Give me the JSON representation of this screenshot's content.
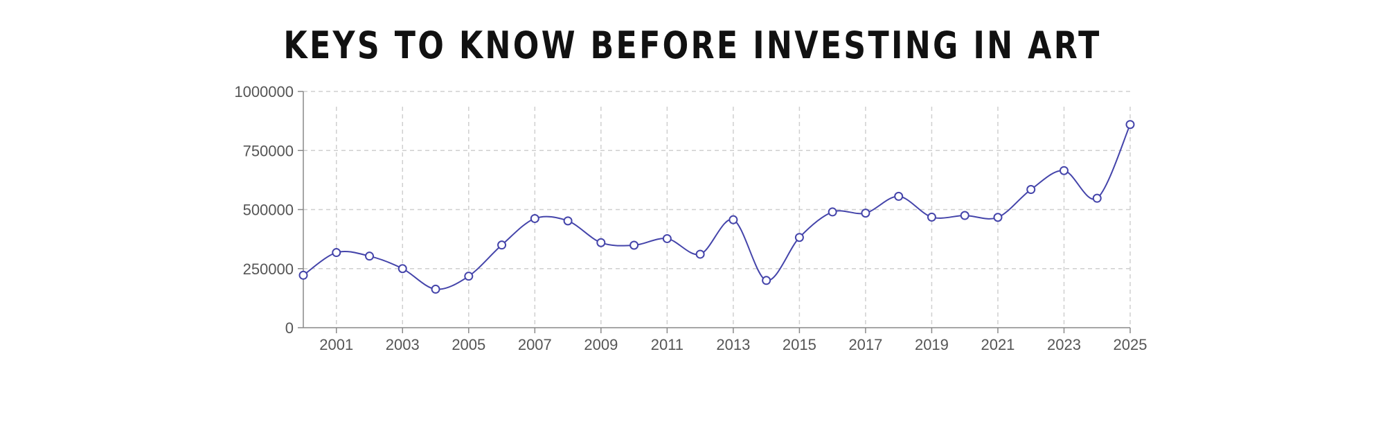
{
  "chart_data": {
    "type": "line",
    "title": "KEYS TO KNOW BEFORE INVESTING IN ART",
    "xlabel": "",
    "ylabel": "",
    "x": [
      2000,
      2001,
      2002,
      2003,
      2004,
      2005,
      2006,
      2007,
      2008,
      2009,
      2010,
      2011,
      2012,
      2013,
      2014,
      2015,
      2016,
      2017,
      2018,
      2019,
      2020,
      2021,
      2022,
      2023,
      2024,
      2025
    ],
    "series": [
      {
        "name": "",
        "values": [
          222000,
          318000,
          303000,
          250000,
          163000,
          218000,
          350000,
          462000,
          452000,
          360000,
          349000,
          377000,
          311000,
          457000,
          200000,
          382000,
          490000,
          485000,
          556000,
          468000,
          475000,
          467000,
          585000,
          665000,
          548000,
          860000
        ],
        "color": "#4444aa"
      }
    ],
    "xlim": [
      2000,
      2025
    ],
    "ylim": [
      0,
      1000000
    ],
    "xticks": [
      2001,
      2003,
      2005,
      2007,
      2009,
      2011,
      2013,
      2015,
      2017,
      2019,
      2021,
      2023,
      2025
    ],
    "yticks": [
      0,
      250000,
      500000,
      750000,
      1000000
    ],
    "grid": true,
    "legend": "none"
  }
}
